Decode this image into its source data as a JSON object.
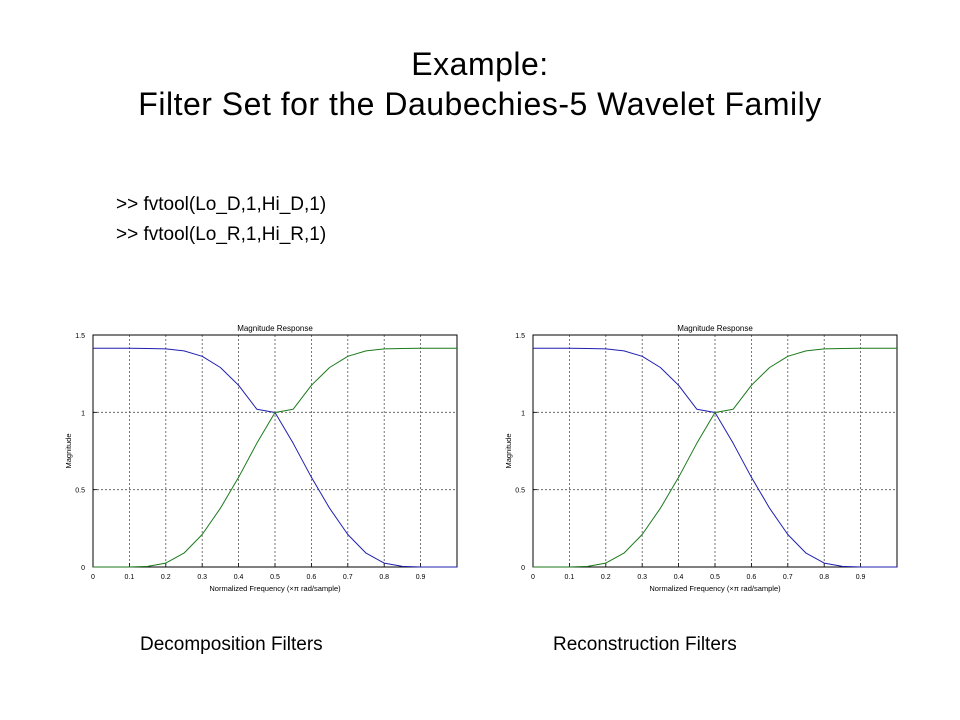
{
  "slide": {
    "title_line1": "Example:",
    "title_line2": "Filter Set for the Daubechies-5 Wavelet Family",
    "code_lines": [
      ">> fvtool(Lo_D,1,Hi_D,1)",
      ">> fvtool(Lo_R,1,Hi_R,1)"
    ],
    "caption_left": "Decomposition Filters",
    "caption_right": "Reconstruction Filters"
  },
  "colors": {
    "lowpass": "#1f1fb0",
    "highpass": "#1a7a1a",
    "grid": "#555555"
  },
  "chart_data": [
    {
      "type": "line",
      "title": "Magnitude Response",
      "xlabel": "Normalized Frequency (×π rad/sample)",
      "ylabel": "Magnitude",
      "xlim": [
        0,
        1
      ],
      "ylim": [
        0,
        1.5
      ],
      "xticks": [
        "0",
        "0.1",
        "0.2",
        "0.3",
        "0.4",
        "0.5",
        "0.6",
        "0.7",
        "0.8",
        "0.9"
      ],
      "yticks": [
        "0",
        "0.5",
        "1",
        "1.5"
      ],
      "grid": true,
      "x": [
        0,
        0.05,
        0.1,
        0.15,
        0.2,
        0.25,
        0.3,
        0.35,
        0.4,
        0.45,
        0.5,
        0.55,
        0.6,
        0.65,
        0.7,
        0.75,
        0.8,
        0.85,
        0.9,
        0.95,
        1.0
      ],
      "series": [
        {
          "values": [
            1.414,
            1.414,
            1.414,
            1.413,
            1.41,
            1.397,
            1.362,
            1.29,
            1.175,
            1.02,
            0.999,
            0.8,
            0.58,
            0.38,
            0.21,
            0.09,
            0.025,
            0.004,
            0.0,
            0.0,
            0.0
          ]
        },
        {
          "values": [
            0.0,
            0.0,
            0.0,
            0.004,
            0.025,
            0.09,
            0.21,
            0.38,
            0.58,
            0.8,
            0.999,
            1.02,
            1.175,
            1.29,
            1.362,
            1.397,
            1.41,
            1.413,
            1.414,
            1.414,
            1.414
          ]
        }
      ]
    },
    {
      "type": "line",
      "title": "Magnitude Response",
      "xlabel": "Normalized Frequency (×π rad/sample)",
      "ylabel": "Magnitude",
      "xlim": [
        0,
        1
      ],
      "ylim": [
        0,
        1.5
      ],
      "xticks": [
        "0",
        "0.1",
        "0.2",
        "0.3",
        "0.4",
        "0.5",
        "0.6",
        "0.7",
        "0.8",
        "0.9"
      ],
      "yticks": [
        "0",
        "0.5",
        "1",
        "1.5"
      ],
      "grid": true,
      "x": [
        0,
        0.05,
        0.1,
        0.15,
        0.2,
        0.25,
        0.3,
        0.35,
        0.4,
        0.45,
        0.5,
        0.55,
        0.6,
        0.65,
        0.7,
        0.75,
        0.8,
        0.85,
        0.9,
        0.95,
        1.0
      ],
      "series": [
        {
          "values": [
            1.414,
            1.414,
            1.414,
            1.413,
            1.41,
            1.397,
            1.362,
            1.29,
            1.175,
            1.02,
            0.999,
            0.8,
            0.58,
            0.38,
            0.21,
            0.09,
            0.025,
            0.004,
            0.0,
            0.0,
            0.0
          ]
        },
        {
          "values": [
            0.0,
            0.0,
            0.0,
            0.004,
            0.025,
            0.09,
            0.21,
            0.38,
            0.58,
            0.8,
            0.999,
            1.02,
            1.175,
            1.29,
            1.362,
            1.397,
            1.41,
            1.413,
            1.414,
            1.414,
            1.414
          ]
        }
      ]
    }
  ]
}
